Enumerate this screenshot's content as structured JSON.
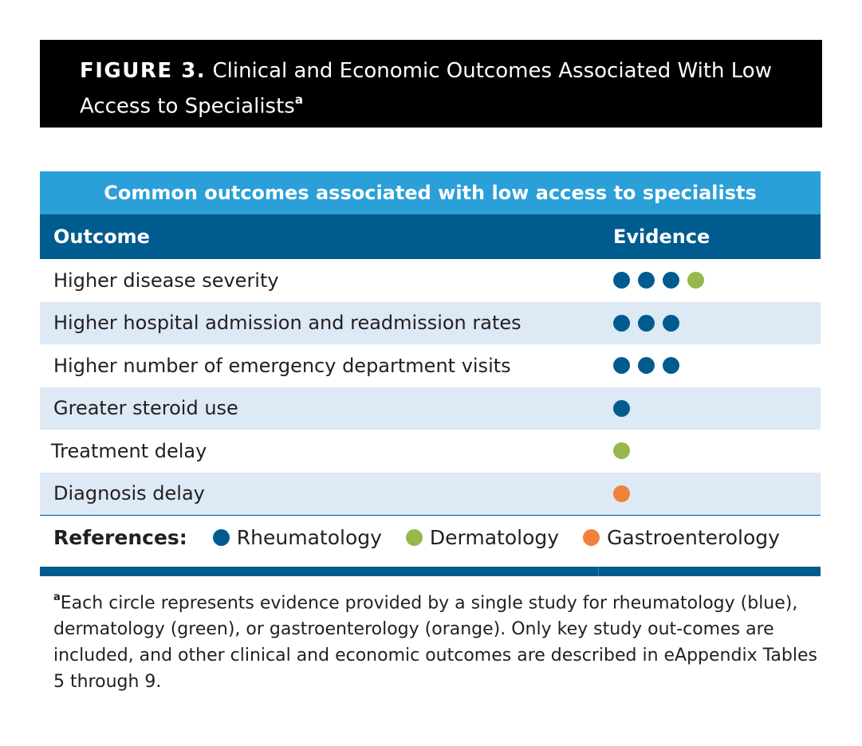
{
  "figure": {
    "label": "FIGURE 3.",
    "title": "Clinical and Economic Outcomes Associated With Low Access to Specialists",
    "title_superscript": "a"
  },
  "table": {
    "banner": "Common outcomes associated with low access to specialists",
    "columns": [
      "Outcome",
      "Evidence"
    ],
    "rows": [
      {
        "outcome": "Higher disease severity",
        "evidence": [
          "rheumatology",
          "rheumatology",
          "rheumatology",
          "dermatology"
        ]
      },
      {
        "outcome": "Higher hospital admission and readmission rates",
        "evidence": [
          "rheumatology",
          "rheumatology",
          "rheumatology"
        ]
      },
      {
        "outcome": "Higher number of emergency department visits",
        "evidence": [
          "rheumatology",
          "rheumatology",
          "rheumatology"
        ]
      },
      {
        "outcome": "Greater steroid use",
        "evidence": [
          "rheumatology"
        ]
      },
      {
        "outcome": "Treatment delay",
        "evidence": [
          "dermatology"
        ]
      },
      {
        "outcome": "Diagnosis delay",
        "evidence": [
          "gastroenterology"
        ]
      }
    ]
  },
  "references": {
    "label": "References:",
    "items": [
      {
        "key": "rheumatology",
        "label": "Rheumatology",
        "color": "#005b8f"
      },
      {
        "key": "dermatology",
        "label": "Dermatology",
        "color": "#97b84a"
      },
      {
        "key": "gastroenterology",
        "label": "Gastroenterology",
        "color": "#f0803c"
      }
    ]
  },
  "footnote": {
    "marker": "a",
    "text": "Each circle represents evidence provided by a single study for rheumatology (blue), dermatology (green), or gastroenterology (orange). Only key study out-comes are included, and other clinical and economic outcomes are described in eAppendix Tables 5 through 9."
  },
  "colors": {
    "banner": "#2a9fd8",
    "header": "#005b8f",
    "alt_row": "#dde9f5"
  }
}
